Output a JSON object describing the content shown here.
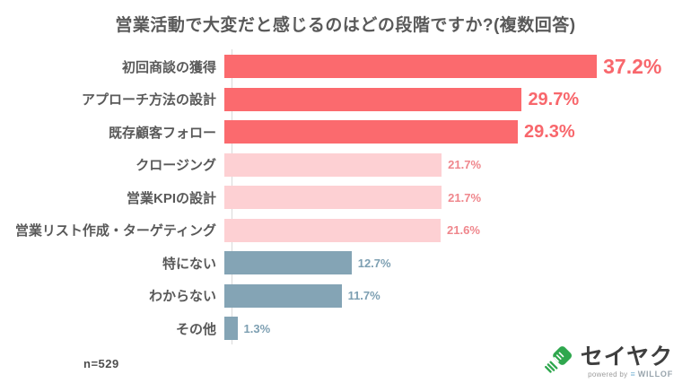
{
  "title": "営業活動で大変だと感じるのはどの段階ですか?(複数回答)",
  "sample_size": "n=529",
  "chart_data": {
    "type": "bar",
    "orientation": "horizontal",
    "title": "営業活動で大変だと感じるのはどの段階ですか?(複数回答)",
    "categories": [
      "初回商談の獲得",
      "アプローチ方法の設計",
      "既存顧客フォロー",
      "クロージング",
      "営業KPIの設計",
      "営業リスト作成・ターゲティング",
      "特にない",
      "わからない",
      "その他"
    ],
    "values": [
      37.2,
      29.7,
      29.3,
      21.7,
      21.7,
      21.6,
      12.7,
      11.7,
      1.3
    ],
    "value_labels": [
      "37.2%",
      "29.7%",
      "29.3%",
      "21.7%",
      "21.7%",
      "21.6%",
      "12.7%",
      "11.7%",
      "1.3%"
    ],
    "groups": [
      "primary",
      "primary",
      "primary",
      "secondary",
      "secondary",
      "secondary",
      "neutral",
      "neutral",
      "neutral"
    ],
    "emphasis": [
      "xl",
      "lg",
      "lg",
      "sm",
      "sm",
      "sm",
      "sm",
      "sm",
      "sm"
    ],
    "xlim": [
      0,
      43.6
    ],
    "grid": false,
    "legend": false,
    "bar_colors": {
      "primary": "#fb6a6e",
      "secondary": "#fdd0d3",
      "neutral": "#84a4b5"
    },
    "value_text_colors": {
      "primary": "#f8676c",
      "secondary": "#ef868c",
      "neutral": "#7d9fb2"
    },
    "axis_line_color": "#d9d9d9",
    "sample_size": "n=529"
  },
  "logo": {
    "brand_name": "セイヤク",
    "powered_by_label": "powered by",
    "powered_by_mark": "≡",
    "powered_by_brand": "WILLOF",
    "icon_color": "#2fa74e",
    "willof_mark_color": "#82b9d8"
  }
}
